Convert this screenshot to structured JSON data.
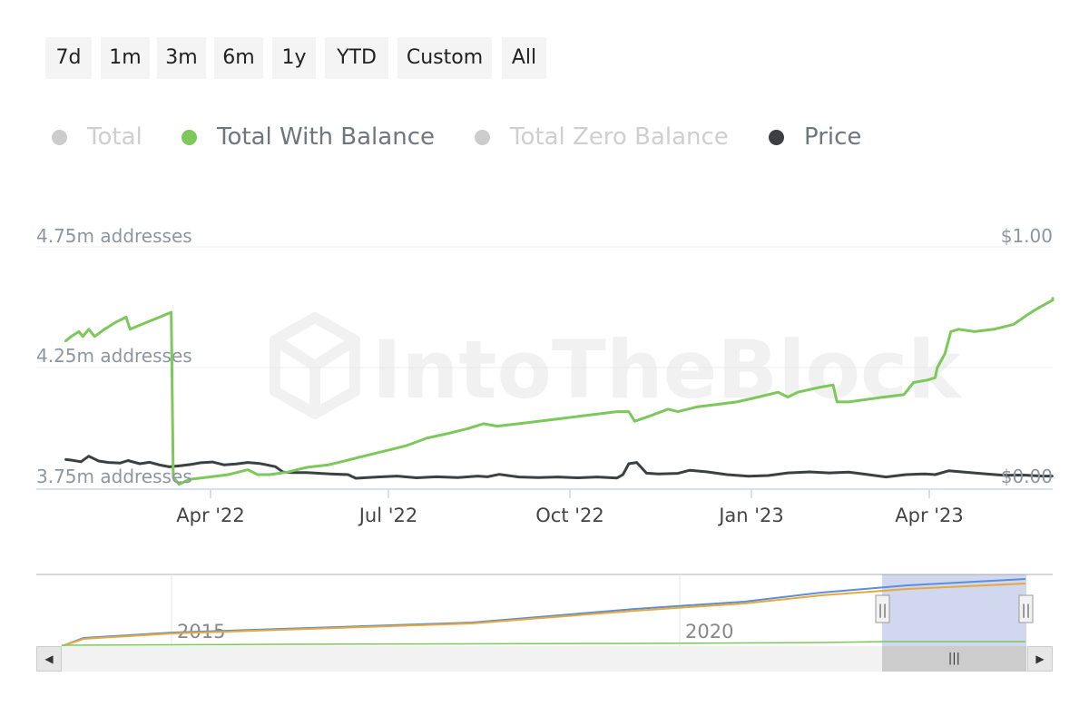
{
  "range_buttons": [
    {
      "label": "7d"
    },
    {
      "label": "1m"
    },
    {
      "label": "3m"
    },
    {
      "label": "6m"
    },
    {
      "label": "1y"
    },
    {
      "label": "YTD"
    },
    {
      "label": "Custom"
    },
    {
      "label": "All"
    }
  ],
  "legend": [
    {
      "label": "Total",
      "color": "#cccccc",
      "active": false
    },
    {
      "label": "Total With Balance",
      "color": "#7cc85a",
      "active": true
    },
    {
      "label": "Total Zero Balance",
      "color": "#cccccc",
      "active": false
    },
    {
      "label": "Price",
      "color": "#3c4043",
      "active": true
    }
  ],
  "watermark": "IntoTheBlock",
  "chart_data": {
    "type": "line",
    "x_ticks": [
      "Apr '22",
      "Jul '22",
      "Oct '22",
      "Jan '23",
      "Apr '23"
    ],
    "y_left_ticks": [
      "4.75m addresses",
      "4.25m addresses",
      "3.75m addresses"
    ],
    "y_right_ticks": [
      "$1.00",
      "$0.00"
    ],
    "ylim_left": [
      3.75,
      4.75
    ],
    "ylim_right": [
      0,
      1
    ],
    "series": [
      {
        "name": "Total With Balance",
        "color": "#7cc85a",
        "axis": "left",
        "points": [
          [
            "2022-01-17",
            4.36
          ],
          [
            "2022-01-20",
            4.38
          ],
          [
            "2022-01-24",
            4.4
          ],
          [
            "2022-01-26",
            4.38
          ],
          [
            "2022-01-29",
            4.41
          ],
          [
            "2022-02-01",
            4.38
          ],
          [
            "2022-02-06",
            4.41
          ],
          [
            "2022-02-12",
            4.44
          ],
          [
            "2022-02-17",
            4.46
          ],
          [
            "2022-02-19",
            4.41
          ],
          [
            "2022-02-25",
            4.43
          ],
          [
            "2022-03-03",
            4.45
          ],
          [
            "2022-03-09",
            4.47
          ],
          [
            "2022-03-12",
            4.48
          ],
          [
            "2022-03-13",
            3.8
          ],
          [
            "2022-03-16",
            3.77
          ],
          [
            "2022-03-21",
            3.79
          ],
          [
            "2022-03-31",
            3.8
          ],
          [
            "2022-04-10",
            3.81
          ],
          [
            "2022-04-20",
            3.83
          ],
          [
            "2022-04-25",
            3.81
          ],
          [
            "2022-05-01",
            3.81
          ],
          [
            "2022-05-10",
            3.82
          ],
          [
            "2022-05-20",
            3.84
          ],
          [
            "2022-05-31",
            3.85
          ],
          [
            "2022-06-10",
            3.87
          ],
          [
            "2022-06-20",
            3.89
          ],
          [
            "2022-06-30",
            3.91
          ],
          [
            "2022-07-10",
            3.93
          ],
          [
            "2022-07-20",
            3.96
          ],
          [
            "2022-07-31",
            3.98
          ],
          [
            "2022-08-10",
            4.0
          ],
          [
            "2022-08-18",
            4.02
          ],
          [
            "2022-08-25",
            4.01
          ],
          [
            "2022-09-05",
            4.02
          ],
          [
            "2022-09-15",
            4.03
          ],
          [
            "2022-09-25",
            4.04
          ],
          [
            "2022-10-05",
            4.05
          ],
          [
            "2022-10-15",
            4.06
          ],
          [
            "2022-10-25",
            4.07
          ],
          [
            "2022-10-31",
            4.07
          ],
          [
            "2022-11-03",
            4.03
          ],
          [
            "2022-11-10",
            4.05
          ],
          [
            "2022-11-20",
            4.08
          ],
          [
            "2022-11-25",
            4.07
          ],
          [
            "2022-12-05",
            4.09
          ],
          [
            "2022-12-15",
            4.1
          ],
          [
            "2022-12-25",
            4.11
          ],
          [
            "2023-01-05",
            4.13
          ],
          [
            "2023-01-15",
            4.15
          ],
          [
            "2023-01-20",
            4.13
          ],
          [
            "2023-01-25",
            4.15
          ],
          [
            "2023-02-05",
            4.17
          ],
          [
            "2023-02-12",
            4.18
          ],
          [
            "2023-02-14",
            4.11
          ],
          [
            "2023-02-20",
            4.11
          ],
          [
            "2023-03-01",
            4.12
          ],
          [
            "2023-03-10",
            4.13
          ],
          [
            "2023-03-20",
            4.14
          ],
          [
            "2023-03-25",
            4.19
          ],
          [
            "2023-04-01",
            4.2
          ],
          [
            "2023-04-05",
            4.21
          ],
          [
            "2023-04-06",
            4.25
          ],
          [
            "2023-04-10",
            4.31
          ],
          [
            "2023-04-13",
            4.4
          ],
          [
            "2023-04-17",
            4.41
          ],
          [
            "2023-04-25",
            4.4
          ],
          [
            "2023-05-05",
            4.41
          ],
          [
            "2023-05-15",
            4.43
          ],
          [
            "2023-05-22",
            4.47
          ],
          [
            "2023-05-28",
            4.5
          ],
          [
            "2023-06-04",
            4.53
          ],
          [
            "2023-06-08",
            4.54
          ]
        ]
      },
      {
        "name": "Price",
        "color": "#3c4043",
        "axis": "right",
        "points": [
          [
            "2022-01-17",
            0.123
          ],
          [
            "2022-01-20",
            0.12
          ],
          [
            "2022-01-25",
            0.113
          ],
          [
            "2022-01-29",
            0.136
          ],
          [
            "2022-02-03",
            0.116
          ],
          [
            "2022-02-08",
            0.11
          ],
          [
            "2022-02-14",
            0.108
          ],
          [
            "2022-02-18",
            0.118
          ],
          [
            "2022-02-24",
            0.105
          ],
          [
            "2022-03-01",
            0.111
          ],
          [
            "2022-03-06",
            0.1
          ],
          [
            "2022-03-11",
            0.092
          ],
          [
            "2022-03-17",
            0.097
          ],
          [
            "2022-03-22",
            0.102
          ],
          [
            "2022-03-27",
            0.109
          ],
          [
            "2022-04-02",
            0.112
          ],
          [
            "2022-04-08",
            0.1
          ],
          [
            "2022-04-14",
            0.104
          ],
          [
            "2022-04-20",
            0.11
          ],
          [
            "2022-04-26",
            0.106
          ],
          [
            "2022-05-04",
            0.093
          ],
          [
            "2022-05-08",
            0.07
          ],
          [
            "2022-05-13",
            0.068
          ],
          [
            "2022-05-20",
            0.068
          ],
          [
            "2022-06-01",
            0.063
          ],
          [
            "2022-06-10",
            0.06
          ],
          [
            "2022-06-14",
            0.045
          ],
          [
            "2022-06-25",
            0.05
          ],
          [
            "2022-07-05",
            0.054
          ],
          [
            "2022-07-15",
            0.047
          ],
          [
            "2022-07-25",
            0.051
          ],
          [
            "2022-08-05",
            0.048
          ],
          [
            "2022-08-15",
            0.054
          ],
          [
            "2022-08-20",
            0.051
          ],
          [
            "2022-08-26",
            0.061
          ],
          [
            "2022-09-05",
            0.05
          ],
          [
            "2022-09-15",
            0.048
          ],
          [
            "2022-09-25",
            0.05
          ],
          [
            "2022-10-05",
            0.047
          ],
          [
            "2022-10-15",
            0.05
          ],
          [
            "2022-10-25",
            0.046
          ],
          [
            "2022-10-28",
            0.06
          ],
          [
            "2022-10-31",
            0.105
          ],
          [
            "2022-11-04",
            0.11
          ],
          [
            "2022-11-09",
            0.066
          ],
          [
            "2022-11-15",
            0.063
          ],
          [
            "2022-11-25",
            0.065
          ],
          [
            "2022-12-01",
            0.078
          ],
          [
            "2022-12-10",
            0.071
          ],
          [
            "2022-12-20",
            0.06
          ],
          [
            "2022-12-31",
            0.053
          ],
          [
            "2023-01-10",
            0.056
          ],
          [
            "2023-01-20",
            0.067
          ],
          [
            "2023-01-31",
            0.071
          ],
          [
            "2023-02-10",
            0.067
          ],
          [
            "2023-02-20",
            0.07
          ],
          [
            "2023-03-01",
            0.061
          ],
          [
            "2023-03-11",
            0.05
          ],
          [
            "2023-03-21",
            0.06
          ],
          [
            "2023-03-31",
            0.063
          ],
          [
            "2023-04-05",
            0.06
          ],
          [
            "2023-04-12",
            0.076
          ],
          [
            "2023-04-20",
            0.07
          ],
          [
            "2023-05-01",
            0.063
          ],
          [
            "2023-05-10",
            0.057
          ],
          [
            "2023-05-20",
            0.058
          ],
          [
            "2023-05-30",
            0.054
          ],
          [
            "2023-06-08",
            0.054
          ]
        ]
      }
    ]
  },
  "navigator": {
    "x_ticks": [
      "2015",
      "2020"
    ],
    "handle_glyph": "||",
    "scrollbar_glyph": "|||",
    "left_arrow": "◀",
    "right_arrow": "▶",
    "series_colors": {
      "total": "#5b8fd6",
      "zero_balance": "#e8a93c",
      "with_balance": "#7cc85a"
    }
  }
}
